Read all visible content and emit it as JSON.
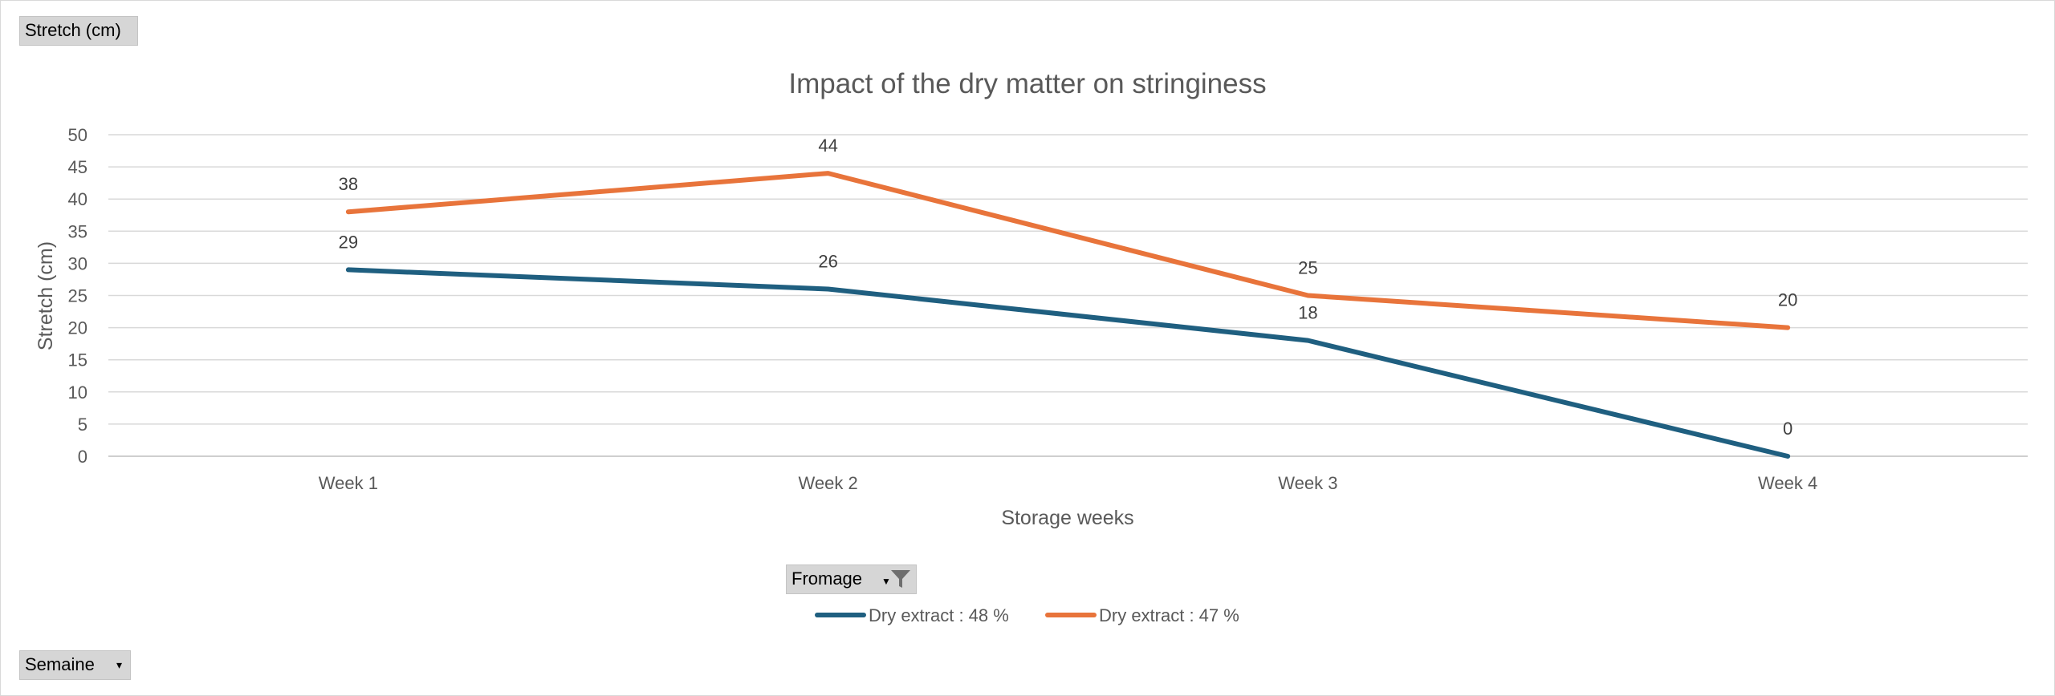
{
  "pivot_fields": {
    "value_field": "Stretch (cm)",
    "axis_field": "Semaine",
    "legend_field": "Fromage"
  },
  "chart_data": {
    "type": "line",
    "title": "Impact of the dry matter on stringiness",
    "xlabel": "Storage weeks",
    "ylabel": "Stretch (cm)",
    "categories": [
      "Week 1",
      "Week 2",
      "Week 3",
      "Week 4"
    ],
    "ylim": [
      0,
      50
    ],
    "ytick_step": 5,
    "grid": true,
    "legend_position": "bottom",
    "series": [
      {
        "name": "Dry extract : 48 %",
        "values": [
          29,
          26,
          18,
          0
        ],
        "color": "#1f5f80"
      },
      {
        "name": "Dry extract : 47 %",
        "values": [
          38,
          44,
          25,
          20
        ],
        "color": "#e8743b"
      }
    ]
  }
}
